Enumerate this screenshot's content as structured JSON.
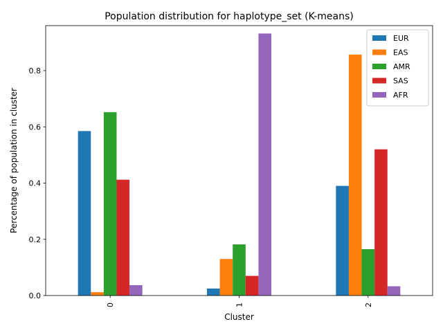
{
  "chart_data": {
    "type": "bar",
    "title": "Population distribution for haplotype_set (K-means)",
    "xlabel": "Cluster",
    "ylabel": "Percentage of population in cluster",
    "categories": [
      "0",
      "1",
      "2"
    ],
    "ylim": [
      0,
      0.96
    ],
    "yticks": [
      0.0,
      0.2,
      0.4,
      0.6,
      0.8
    ],
    "ytick_labels": [
      "0.0",
      "0.2",
      "0.4",
      "0.6",
      "0.8"
    ],
    "grid": false,
    "legend_position": "top-right",
    "series": [
      {
        "name": "EUR",
        "color": "#1f77b4",
        "values": [
          0.585,
          0.025,
          0.39
        ]
      },
      {
        "name": "EAS",
        "color": "#ff7f0e",
        "values": [
          0.012,
          0.13,
          0.857
        ]
      },
      {
        "name": "AMR",
        "color": "#2ca02c",
        "values": [
          0.652,
          0.182,
          0.165
        ]
      },
      {
        "name": "SAS",
        "color": "#d62728",
        "values": [
          0.412,
          0.07,
          0.52
        ]
      },
      {
        "name": "AFR",
        "color": "#9467bd",
        "values": [
          0.037,
          0.932,
          0.033
        ]
      }
    ]
  }
}
